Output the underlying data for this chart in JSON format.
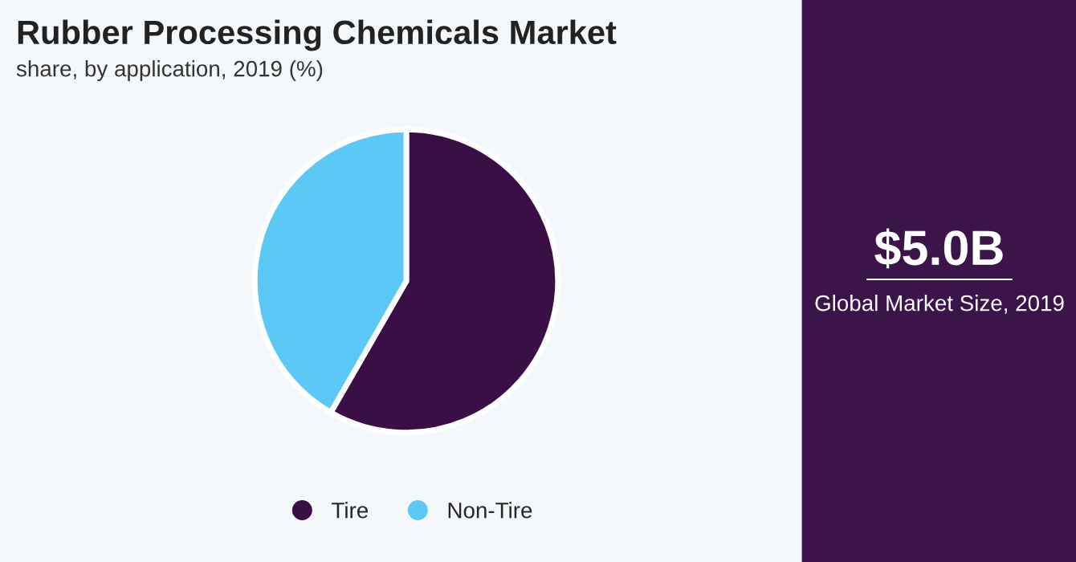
{
  "chart_data": {
    "type": "pie",
    "title": "Rubber Processing Chemicals Market",
    "subtitle": "share, by application, 2019 (%)",
    "categories": [
      "Tire",
      "Non-Tire"
    ],
    "values": [
      58.3,
      41.7
    ],
    "colors": [
      "#3a0f46",
      "#5bc8f5"
    ],
    "legend": "bottom",
    "annotations": [
      "$5.0B",
      "Global Market Size, 2019"
    ]
  }
}
